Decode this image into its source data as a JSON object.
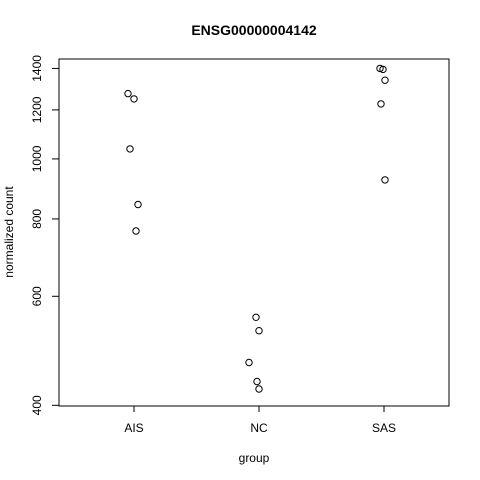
{
  "chart_data": {
    "type": "scatter",
    "title": "ENSG00000004142",
    "xlabel": "group",
    "ylabel": "normalized count",
    "categories": [
      "AIS",
      "NC",
      "SAS"
    ],
    "y_scale": "log",
    "ylim": [
      399,
      1450
    ],
    "y_ticks": [
      400,
      600,
      800,
      1000,
      1200,
      1400
    ],
    "grid": false,
    "points": [
      {
        "group": "AIS",
        "y": 1275
      },
      {
        "group": "AIS",
        "y": 1250
      },
      {
        "group": "AIS",
        "y": 1038
      },
      {
        "group": "AIS",
        "y": 844
      },
      {
        "group": "AIS",
        "y": 765
      },
      {
        "group": "NC",
        "y": 555
      },
      {
        "group": "NC",
        "y": 528
      },
      {
        "group": "NC",
        "y": 469
      },
      {
        "group": "NC",
        "y": 437
      },
      {
        "group": "NC",
        "y": 425
      },
      {
        "group": "SAS",
        "y": 1400
      },
      {
        "group": "SAS",
        "y": 1395
      },
      {
        "group": "SAS",
        "y": 1340
      },
      {
        "group": "SAS",
        "y": 1227
      },
      {
        "group": "SAS",
        "y": 925
      }
    ]
  }
}
